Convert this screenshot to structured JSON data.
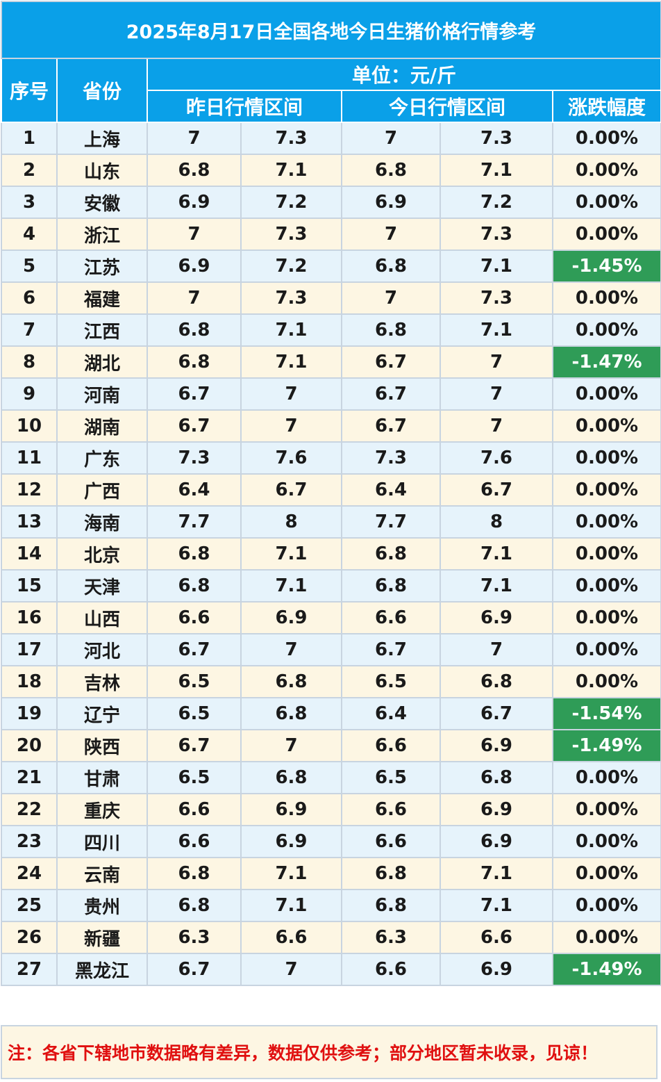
{
  "title": "2025年8月17日全国各地今日生猪价格行情参考",
  "headers": {
    "index": "序号",
    "province": "省份",
    "unit": "单位：元/斤",
    "yesterday": "昨日行情区间",
    "today": "今日行情区间",
    "change": "涨跌幅度"
  },
  "rows": [
    {
      "no": "1",
      "province": "上海",
      "y_low": "7",
      "y_high": "7.3",
      "t_low": "7",
      "t_high": "7.3",
      "change": "0.00%",
      "down": false
    },
    {
      "no": "2",
      "province": "山东",
      "y_low": "6.8",
      "y_high": "7.1",
      "t_low": "6.8",
      "t_high": "7.1",
      "change": "0.00%",
      "down": false
    },
    {
      "no": "3",
      "province": "安徽",
      "y_low": "6.9",
      "y_high": "7.2",
      "t_low": "6.9",
      "t_high": "7.2",
      "change": "0.00%",
      "down": false
    },
    {
      "no": "4",
      "province": "浙江",
      "y_low": "7",
      "y_high": "7.3",
      "t_low": "7",
      "t_high": "7.3",
      "change": "0.00%",
      "down": false
    },
    {
      "no": "5",
      "province": "江苏",
      "y_low": "6.9",
      "y_high": "7.2",
      "t_low": "6.8",
      "t_high": "7.1",
      "change": "-1.45%",
      "down": true
    },
    {
      "no": "6",
      "province": "福建",
      "y_low": "7",
      "y_high": "7.3",
      "t_low": "7",
      "t_high": "7.3",
      "change": "0.00%",
      "down": false
    },
    {
      "no": "7",
      "province": "江西",
      "y_low": "6.8",
      "y_high": "7.1",
      "t_low": "6.8",
      "t_high": "7.1",
      "change": "0.00%",
      "down": false
    },
    {
      "no": "8",
      "province": "湖北",
      "y_low": "6.8",
      "y_high": "7.1",
      "t_low": "6.7",
      "t_high": "7",
      "change": "-1.47%",
      "down": true
    },
    {
      "no": "9",
      "province": "河南",
      "y_low": "6.7",
      "y_high": "7",
      "t_low": "6.7",
      "t_high": "7",
      "change": "0.00%",
      "down": false
    },
    {
      "no": "10",
      "province": "湖南",
      "y_low": "6.7",
      "y_high": "7",
      "t_low": "6.7",
      "t_high": "7",
      "change": "0.00%",
      "down": false
    },
    {
      "no": "11",
      "province": "广东",
      "y_low": "7.3",
      "y_high": "7.6",
      "t_low": "7.3",
      "t_high": "7.6",
      "change": "0.00%",
      "down": false
    },
    {
      "no": "12",
      "province": "广西",
      "y_low": "6.4",
      "y_high": "6.7",
      "t_low": "6.4",
      "t_high": "6.7",
      "change": "0.00%",
      "down": false
    },
    {
      "no": "13",
      "province": "海南",
      "y_low": "7.7",
      "y_high": "8",
      "t_low": "7.7",
      "t_high": "8",
      "change": "0.00%",
      "down": false
    },
    {
      "no": "14",
      "province": "北京",
      "y_low": "6.8",
      "y_high": "7.1",
      "t_low": "6.8",
      "t_high": "7.1",
      "change": "0.00%",
      "down": false
    },
    {
      "no": "15",
      "province": "天津",
      "y_low": "6.8",
      "y_high": "7.1",
      "t_low": "6.8",
      "t_high": "7.1",
      "change": "0.00%",
      "down": false
    },
    {
      "no": "16",
      "province": "山西",
      "y_low": "6.6",
      "y_high": "6.9",
      "t_low": "6.6",
      "t_high": "6.9",
      "change": "0.00%",
      "down": false
    },
    {
      "no": "17",
      "province": "河北",
      "y_low": "6.7",
      "y_high": "7",
      "t_low": "6.7",
      "t_high": "7",
      "change": "0.00%",
      "down": false
    },
    {
      "no": "18",
      "province": "吉林",
      "y_low": "6.5",
      "y_high": "6.8",
      "t_low": "6.5",
      "t_high": "6.8",
      "change": "0.00%",
      "down": false
    },
    {
      "no": "19",
      "province": "辽宁",
      "y_low": "6.5",
      "y_high": "6.8",
      "t_low": "6.4",
      "t_high": "6.7",
      "change": "-1.54%",
      "down": true
    },
    {
      "no": "20",
      "province": "陕西",
      "y_low": "6.7",
      "y_high": "7",
      "t_low": "6.6",
      "t_high": "6.9",
      "change": "-1.49%",
      "down": true
    },
    {
      "no": "21",
      "province": "甘肃",
      "y_low": "6.5",
      "y_high": "6.8",
      "t_low": "6.5",
      "t_high": "6.8",
      "change": "0.00%",
      "down": false
    },
    {
      "no": "22",
      "province": "重庆",
      "y_low": "6.6",
      "y_high": "6.9",
      "t_low": "6.6",
      "t_high": "6.9",
      "change": "0.00%",
      "down": false
    },
    {
      "no": "23",
      "province": "四川",
      "y_low": "6.6",
      "y_high": "6.9",
      "t_low": "6.6",
      "t_high": "6.9",
      "change": "0.00%",
      "down": false
    },
    {
      "no": "24",
      "province": "云南",
      "y_low": "6.8",
      "y_high": "7.1",
      "t_low": "6.8",
      "t_high": "7.1",
      "change": "0.00%",
      "down": false
    },
    {
      "no": "25",
      "province": "贵州",
      "y_low": "6.8",
      "y_high": "7.1",
      "t_low": "6.8",
      "t_high": "7.1",
      "change": "0.00%",
      "down": false
    },
    {
      "no": "26",
      "province": "新疆",
      "y_low": "6.3",
      "y_high": "6.6",
      "t_low": "6.3",
      "t_high": "6.6",
      "change": "0.00%",
      "down": false
    },
    {
      "no": "27",
      "province": "黑龙江",
      "y_low": "6.7",
      "y_high": "7",
      "t_low": "6.6",
      "t_high": "6.9",
      "change": "-1.49%",
      "down": true
    }
  ],
  "note": "注：各省下辖地市数据略有差异，数据仅供参考；部分地区暂未收录，见谅！",
  "colors": {
    "header_blue": "#0aa0e8",
    "row_blue": "#e6f3fb",
    "row_cream": "#fdf6e3",
    "down_green": "#2f9c57",
    "note_red": "#e01010"
  }
}
